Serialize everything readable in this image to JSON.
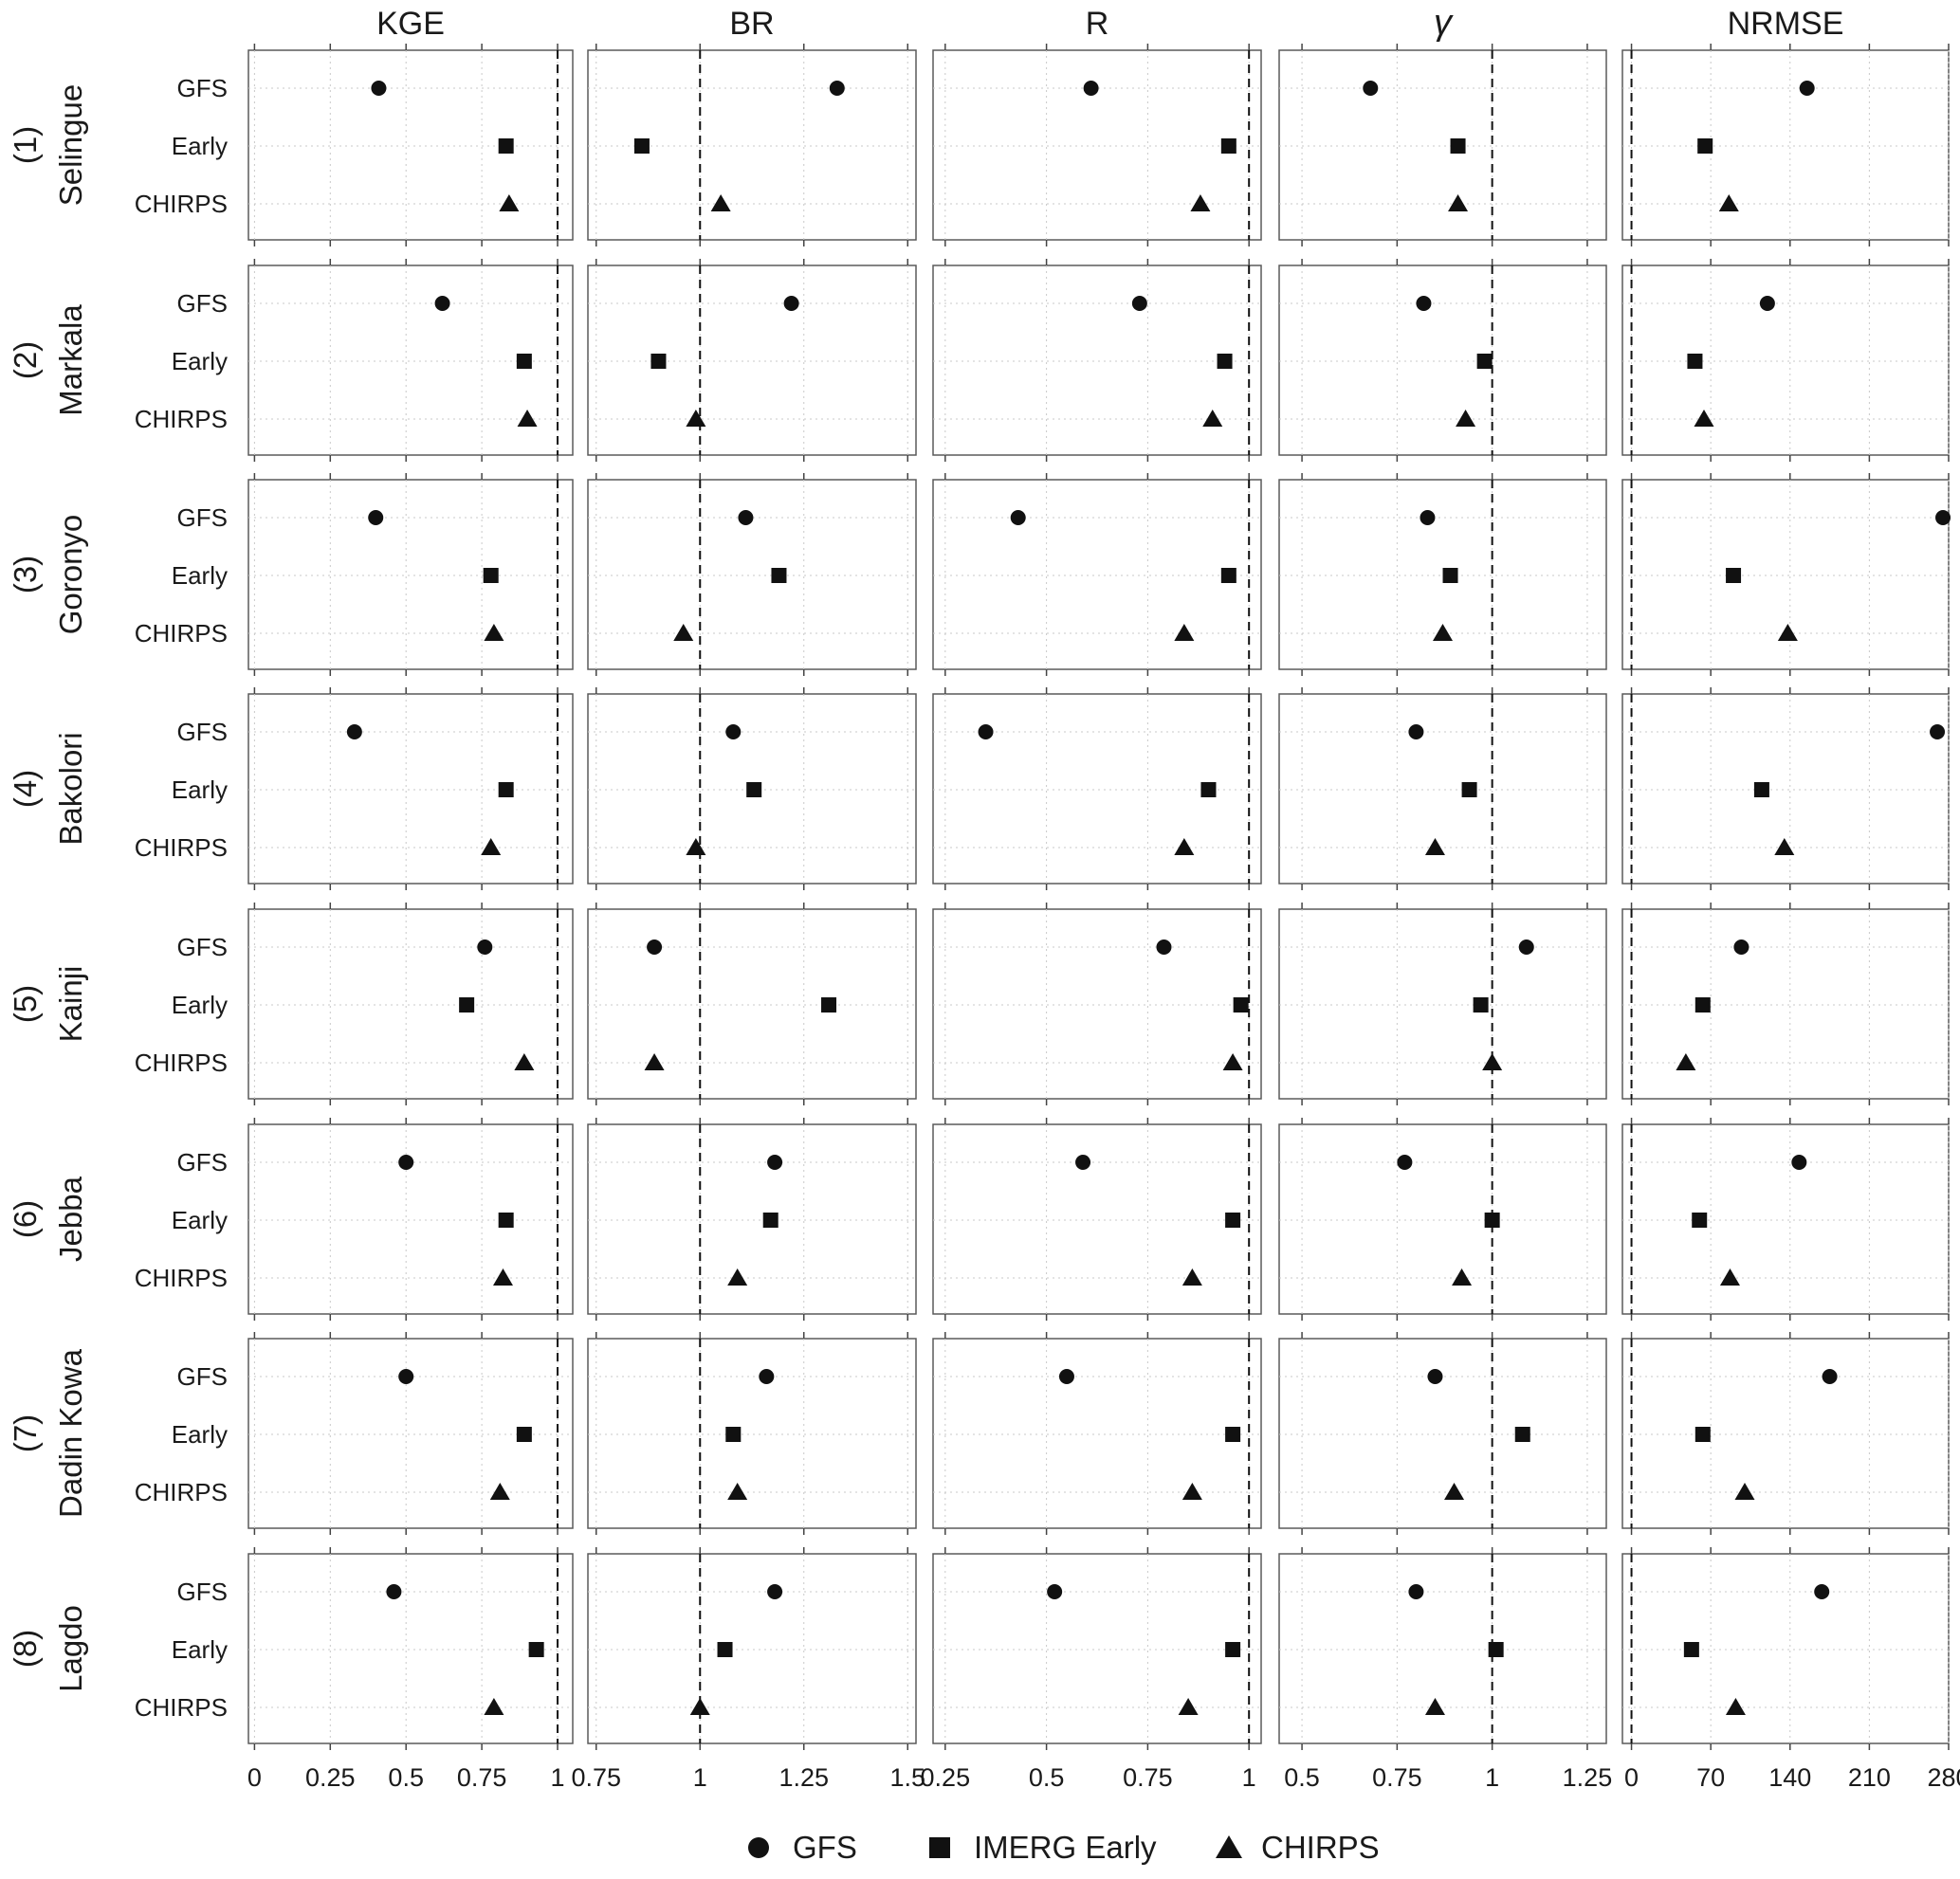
{
  "chart_data": {
    "type": "scatter",
    "metrics": [
      {
        "id": "kge",
        "label": "KGE",
        "xlim": [
          -0.02,
          1.05
        ],
        "ticks": [
          0,
          0.25,
          0.5,
          0.75,
          1
        ],
        "tick_labels": [
          "0",
          "0.25",
          "0.5",
          "0.75",
          "1"
        ],
        "ref": 1
      },
      {
        "id": "br",
        "label": "BR",
        "xlim": [
          0.73,
          1.52
        ],
        "ticks": [
          0.75,
          1,
          1.25,
          1.5
        ],
        "tick_labels": [
          "0.75",
          "1",
          "1.25",
          "1.5"
        ],
        "ref": 1
      },
      {
        "id": "r",
        "label": "R",
        "xlim": [
          0.22,
          1.03
        ],
        "ticks": [
          0.25,
          0.5,
          0.75,
          1
        ],
        "tick_labels": [
          "0.25",
          "0.5",
          "0.75",
          "1"
        ],
        "ref": 1
      },
      {
        "id": "gamma",
        "label": "γ",
        "xlim": [
          0.44,
          1.3
        ],
        "ticks": [
          0.5,
          0.75,
          1,
          1.25
        ],
        "tick_labels": [
          "0.5",
          "0.75",
          "1",
          "1.25"
        ],
        "ref": 1
      },
      {
        "id": "nrmse",
        "label": "NRMSE",
        "xlim": [
          -8,
          280
        ],
        "ticks": [
          0,
          70,
          140,
          210,
          280
        ],
        "tick_labels": [
          "0",
          "70",
          "140",
          "210",
          "280"
        ],
        "ref": 0
      }
    ],
    "products": [
      {
        "id": "gfs",
        "row_label": "GFS",
        "legend_label": "GFS",
        "marker": "circle"
      },
      {
        "id": "early",
        "row_label": "Early",
        "legend_label": "IMERG Early",
        "marker": "square"
      },
      {
        "id": "chirps",
        "row_label": "CHIRPS",
        "legend_label": "CHIRPS",
        "marker": "triangle"
      }
    ],
    "sites": [
      {
        "num": "(1)",
        "name": "Selingue",
        "values": {
          "kge": [
            0.41,
            0.83,
            0.84
          ],
          "br": [
            1.33,
            0.86,
            1.05
          ],
          "r": [
            0.61,
            0.95,
            0.88
          ],
          "gamma": [
            0.68,
            0.91,
            0.91
          ],
          "nrmse": [
            155,
            65,
            86
          ]
        }
      },
      {
        "num": "(2)",
        "name": "Markala",
        "values": {
          "kge": [
            0.62,
            0.89,
            0.9
          ],
          "br": [
            1.22,
            0.9,
            0.99
          ],
          "r": [
            0.73,
            0.94,
            0.91
          ],
          "gamma": [
            0.82,
            0.98,
            0.93
          ],
          "nrmse": [
            120,
            56,
            64
          ]
        }
      },
      {
        "num": "(3)",
        "name": "Goronyo",
        "values": {
          "kge": [
            0.4,
            0.78,
            0.79
          ],
          "br": [
            1.11,
            1.19,
            0.96
          ],
          "r": [
            0.43,
            0.95,
            0.84
          ],
          "gamma": [
            0.83,
            0.89,
            0.87
          ],
          "nrmse": [
            275,
            90,
            138
          ]
        }
      },
      {
        "num": "(4)",
        "name": "Bakolori",
        "values": {
          "kge": [
            0.33,
            0.83,
            0.78
          ],
          "br": [
            1.08,
            1.13,
            0.99
          ],
          "r": [
            0.35,
            0.9,
            0.84
          ],
          "gamma": [
            0.8,
            0.94,
            0.85
          ],
          "nrmse": [
            270,
            115,
            135
          ]
        }
      },
      {
        "num": "(5)",
        "name": "Kainji",
        "values": {
          "kge": [
            0.76,
            0.7,
            0.89
          ],
          "br": [
            0.89,
            1.31,
            0.89
          ],
          "r": [
            0.79,
            0.98,
            0.96
          ],
          "gamma": [
            1.09,
            0.97,
            1.0
          ],
          "nrmse": [
            97,
            63,
            48
          ]
        }
      },
      {
        "num": "(6)",
        "name": "Jebba",
        "values": {
          "kge": [
            0.5,
            0.83,
            0.82
          ],
          "br": [
            1.18,
            1.17,
            1.09
          ],
          "r": [
            0.59,
            0.96,
            0.86
          ],
          "gamma": [
            0.77,
            1.0,
            0.92
          ],
          "nrmse": [
            148,
            60,
            87
          ]
        }
      },
      {
        "num": "(7)",
        "name": "Dadin Kowa",
        "values": {
          "kge": [
            0.5,
            0.89,
            0.81
          ],
          "br": [
            1.16,
            1.08,
            1.09
          ],
          "r": [
            0.55,
            0.96,
            0.86
          ],
          "gamma": [
            0.85,
            1.08,
            0.9
          ],
          "nrmse": [
            175,
            63,
            100
          ]
        }
      },
      {
        "num": "(8)",
        "name": "Lagdo",
        "values": {
          "kge": [
            0.46,
            0.93,
            0.79
          ],
          "br": [
            1.18,
            1.06,
            1.0
          ],
          "r": [
            0.52,
            0.96,
            0.85
          ],
          "gamma": [
            0.8,
            1.01,
            0.85
          ],
          "nrmse": [
            168,
            53,
            92
          ]
        }
      }
    ],
    "grid": true,
    "legend_position": "bottom"
  }
}
